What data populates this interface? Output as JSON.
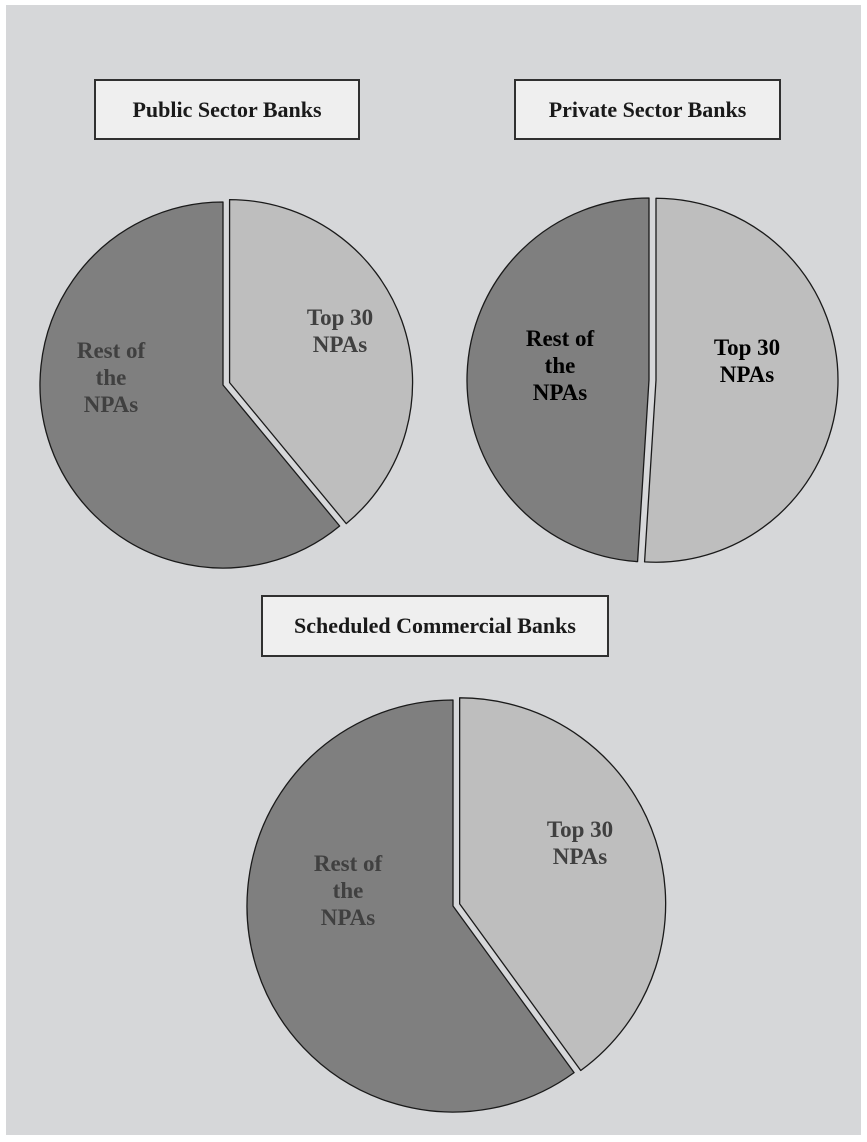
{
  "chart_data": [
    {
      "type": "pie",
      "title": "Public Sector Banks",
      "slices": [
        {
          "label": [
            "Top 30",
            "NPAs"
          ],
          "value": 39,
          "color": "#bebebe",
          "exploded": true,
          "text_color": "#404040"
        },
        {
          "label": [
            "Rest of",
            "the",
            "NPAs"
          ],
          "value": 61,
          "color": "#7f7f7f",
          "exploded": false,
          "text_color": "#404040"
        }
      ]
    },
    {
      "type": "pie",
      "title": "Private Sector Banks",
      "slices": [
        {
          "label": [
            "Top 30",
            "NPAs"
          ],
          "value": 51,
          "color": "#bebebe",
          "exploded": true,
          "text_color": "#000000"
        },
        {
          "label": [
            "Rest of",
            "the",
            "NPAs"
          ],
          "value": 49,
          "color": "#7f7f7f",
          "exploded": false,
          "text_color": "#000000"
        }
      ]
    },
    {
      "type": "pie",
      "title": "Scheduled Commercial Banks",
      "slices": [
        {
          "label": [
            "Top 30",
            "NPAs"
          ],
          "value": 40,
          "color": "#bebebe",
          "exploded": true,
          "text_color": "#404040"
        },
        {
          "label": [
            "Rest of",
            "the",
            "NPAs"
          ],
          "value": 60,
          "color": "#7f7f7f",
          "exploded": false,
          "text_color": "#404040"
        }
      ]
    }
  ]
}
